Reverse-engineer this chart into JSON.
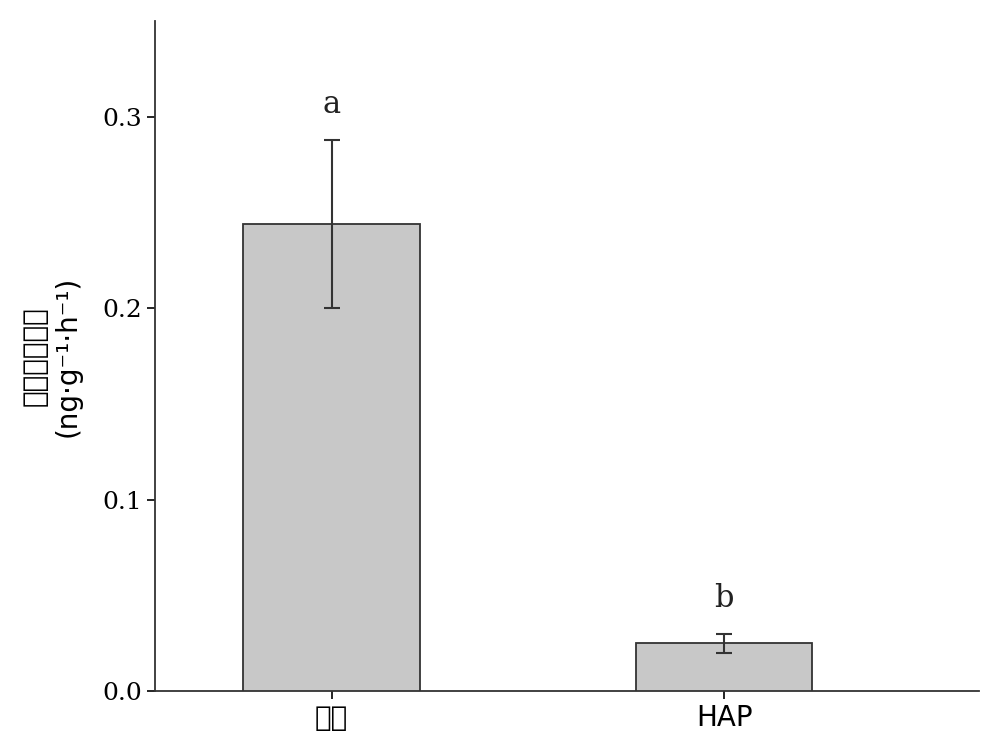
{
  "categories": [
    "对照",
    "HAP"
  ],
  "values": [
    0.244,
    0.025
  ],
  "errors_upper": [
    0.044,
    0.005
  ],
  "errors_lower": [
    0.044,
    0.005
  ],
  "bar_color": "#c8c8c8",
  "bar_edge_color": "#333333",
  "bar_width": 0.45,
  "letters": [
    "a",
    "b"
  ],
  "ylabel_chinese": "氧化亚氮速率",
  "ylabel_units": "(ng·g⁻¹·h⁻¹)",
  "ylim": [
    0,
    0.35
  ],
  "yticks": [
    0.0,
    0.1,
    0.2,
    0.3
  ],
  "xlabel_fontsize": 20,
  "ylabel_fontsize": 20,
  "tick_fontsize": 18,
  "letter_fontsize": 22,
  "background_color": "#ffffff",
  "bar_positions": [
    1,
    2
  ]
}
